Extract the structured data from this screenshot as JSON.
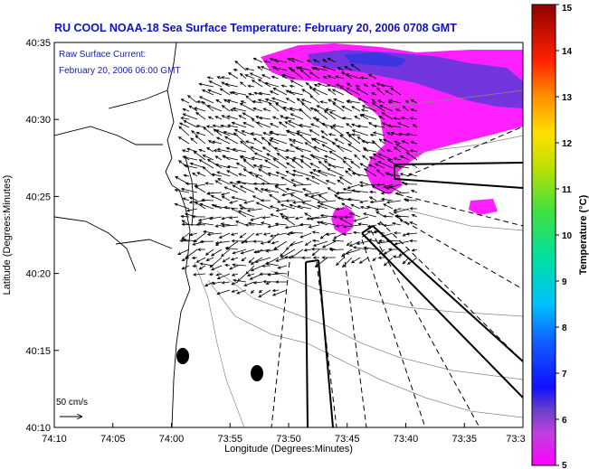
{
  "title": "RU COOL  NOAA-18  Sea Surface Temperature:  February 20, 2006 0708 GMT",
  "annotation": {
    "line1": "Raw Surface Current:",
    "line2": "February 20, 2006 06:00 GMT"
  },
  "scale_label": "50 cm/s",
  "axes": {
    "xlabel": "Longitude (Degrees:Minutes)",
    "ylabel": "Latitude (Degrees:Minutes)",
    "xticks": [
      "74:10",
      "74:05",
      "74:00",
      "73:55",
      "73:50",
      "73:45",
      "73:40",
      "73:35",
      "73:3"
    ],
    "yticks": [
      "40:35",
      "40:30",
      "40:25",
      "40:20",
      "40:15",
      "40:10"
    ]
  },
  "colorbar": {
    "label": "Temperature (°C)",
    "ticks": [
      "15",
      "14",
      "13",
      "12",
      "11",
      "10",
      "9",
      "8",
      "7",
      "6",
      "5"
    ],
    "range": [
      5,
      15
    ]
  },
  "colors": {
    "title": "#1010c8",
    "sst_cold": "#ff20ff",
    "sst_band": "#5a3ad8"
  }
}
